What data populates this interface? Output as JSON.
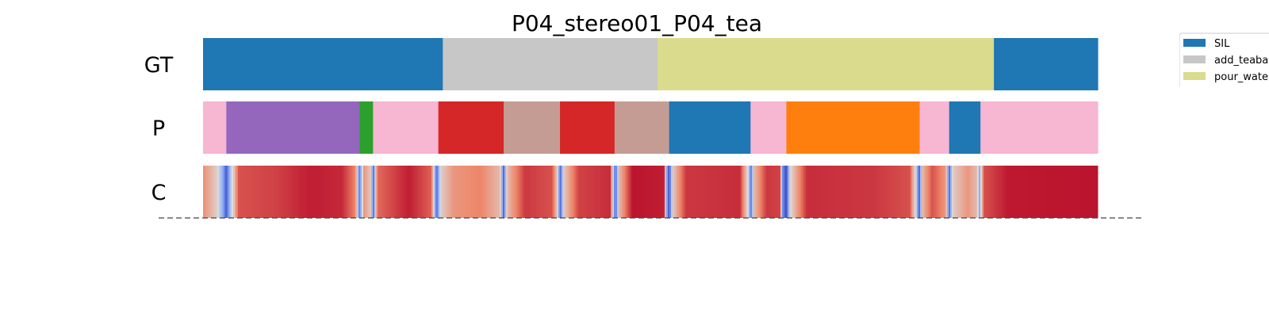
{
  "chart_data": {
    "type": "segmentation",
    "title": "P04_stereo01_P04_tea",
    "rows": [
      {
        "label": "GT",
        "segments": [
          {
            "start": 0.0,
            "end": 0.268,
            "color": "#1f77b4"
          },
          {
            "start": 0.268,
            "end": 0.508,
            "color": "#c7c7c7"
          },
          {
            "start": 0.508,
            "end": 0.884,
            "color": "#dbdb8d"
          },
          {
            "start": 0.884,
            "end": 1.0,
            "color": "#1f77b4"
          }
        ]
      },
      {
        "label": "P",
        "segments": [
          {
            "start": 0.0,
            "end": 0.026,
            "color": "#f7b6d2"
          },
          {
            "start": 0.026,
            "end": 0.175,
            "color": "#9467bd"
          },
          {
            "start": 0.175,
            "end": 0.19,
            "color": "#2ca02c"
          },
          {
            "start": 0.19,
            "end": 0.263,
            "color": "#f7b6d2"
          },
          {
            "start": 0.263,
            "end": 0.336,
            "color": "#d62728"
          },
          {
            "start": 0.336,
            "end": 0.399,
            "color": "#c49c94"
          },
          {
            "start": 0.399,
            "end": 0.46,
            "color": "#d62728"
          },
          {
            "start": 0.46,
            "end": 0.521,
            "color": "#c49c94"
          },
          {
            "start": 0.521,
            "end": 0.612,
            "color": "#1f77b4"
          },
          {
            "start": 0.612,
            "end": 0.652,
            "color": "#f7b6d2"
          },
          {
            "start": 0.652,
            "end": 0.801,
            "color": "#ff7f0e"
          },
          {
            "start": 0.801,
            "end": 0.834,
            "color": "#f7b6d2"
          },
          {
            "start": 0.834,
            "end": 0.869,
            "color": "#1f77b4"
          },
          {
            "start": 0.869,
            "end": 1.0,
            "color": "#f7b6d2"
          }
        ]
      },
      {
        "label": "C",
        "confidence_keypoints": [
          [
            0.0,
            0.72
          ],
          [
            0.015,
            0.55
          ],
          [
            0.022,
            0.3
          ],
          [
            0.026,
            0.05
          ],
          [
            0.03,
            0.35
          ],
          [
            0.04,
            0.85
          ],
          [
            0.08,
            0.88
          ],
          [
            0.12,
            0.95
          ],
          [
            0.155,
            0.93
          ],
          [
            0.17,
            0.75
          ],
          [
            0.175,
            0.15
          ],
          [
            0.18,
            0.7
          ],
          [
            0.188,
            0.55
          ],
          [
            0.19,
            0.05
          ],
          [
            0.195,
            0.8
          ],
          [
            0.23,
            0.95
          ],
          [
            0.255,
            0.82
          ],
          [
            0.261,
            0.1
          ],
          [
            0.266,
            0.55
          ],
          [
            0.28,
            0.7
          ],
          [
            0.31,
            0.75
          ],
          [
            0.332,
            0.6
          ],
          [
            0.336,
            0.1
          ],
          [
            0.34,
            0.6
          ],
          [
            0.36,
            0.9
          ],
          [
            0.39,
            0.85
          ],
          [
            0.397,
            0.5
          ],
          [
            0.399,
            0.02
          ],
          [
            0.403,
            0.55
          ],
          [
            0.42,
            0.88
          ],
          [
            0.455,
            0.92
          ],
          [
            0.459,
            0.35
          ],
          [
            0.461,
            0.08
          ],
          [
            0.465,
            0.6
          ],
          [
            0.48,
            0.97
          ],
          [
            0.515,
            0.95
          ],
          [
            0.519,
            0.2
          ],
          [
            0.521,
            0.02
          ],
          [
            0.525,
            0.55
          ],
          [
            0.54,
            0.9
          ],
          [
            0.6,
            0.92
          ],
          [
            0.61,
            0.45
          ],
          [
            0.612,
            0.1
          ],
          [
            0.616,
            0.6
          ],
          [
            0.63,
            0.9
          ],
          [
            0.645,
            0.88
          ],
          [
            0.648,
            0.2
          ],
          [
            0.652,
            0.0
          ],
          [
            0.656,
            0.5
          ],
          [
            0.675,
            0.92
          ],
          [
            0.75,
            0.9
          ],
          [
            0.79,
            0.85
          ],
          [
            0.798,
            0.4
          ],
          [
            0.8,
            0.02
          ],
          [
            0.804,
            0.6
          ],
          [
            0.815,
            0.85
          ],
          [
            0.83,
            0.7
          ],
          [
            0.834,
            0.1
          ],
          [
            0.838,
            0.55
          ],
          [
            0.855,
            0.7
          ],
          [
            0.865,
            0.6
          ],
          [
            0.868,
            0.3
          ],
          [
            0.873,
            0.85
          ],
          [
            0.9,
            0.96
          ],
          [
            1.0,
            0.97
          ]
        ]
      }
    ],
    "legend": {
      "placement": "top-right",
      "entries": [
        {
          "label": "SIL",
          "color": "#1f77b4"
        },
        {
          "label": "add_teabag",
          "color": "#c7c7c7"
        },
        {
          "label": "pour_water",
          "color": "#dbdb8d"
        }
      ]
    },
    "colormap": "coolwarm"
  }
}
